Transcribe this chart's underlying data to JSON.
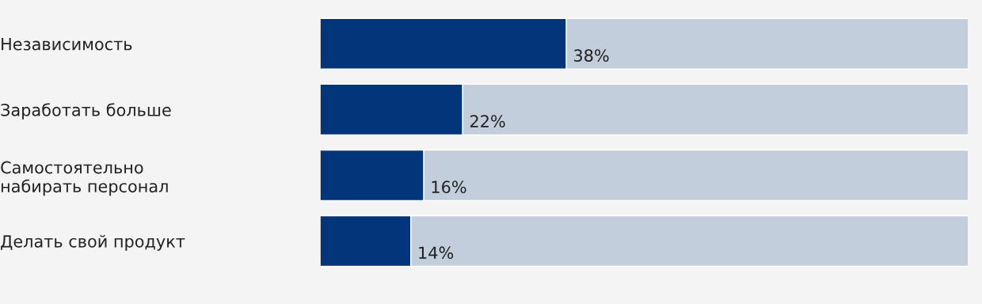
{
  "chart_data": {
    "type": "bar",
    "orientation": "horizontal",
    "stacked": true,
    "categories": [
      "Независимость",
      "Заработать больше",
      "Самостоятельно\nнабирать персонал",
      "Делать свой продукт"
    ],
    "series": [
      {
        "color": "#03357a",
        "values": [
          38,
          22,
          16,
          14
        ],
        "value_labels": [
          "38%",
          "22%",
          "16%",
          "14%"
        ]
      },
      {
        "color": "#c3cedc",
        "values": [
          62,
          78,
          84,
          86
        ]
      }
    ],
    "xlim": [
      0,
      100
    ],
    "tick_labels": "y",
    "grid": false,
    "legend": false
  }
}
